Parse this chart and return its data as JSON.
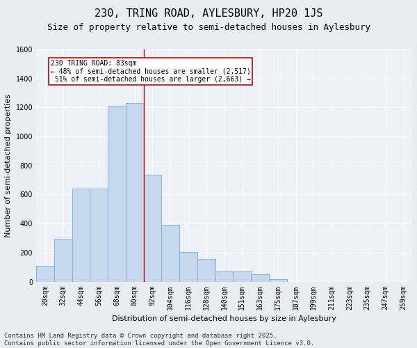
{
  "title": "230, TRING ROAD, AYLESBURY, HP20 1JS",
  "subtitle": "Size of property relative to semi-detached houses in Aylesbury",
  "xlabel": "Distribution of semi-detached houses by size in Aylesbury",
  "ylabel": "Number of semi-detached properties",
  "categories": [
    "20sqm",
    "32sqm",
    "44sqm",
    "56sqm",
    "68sqm",
    "80sqm",
    "92sqm",
    "104sqm",
    "116sqm",
    "128sqm",
    "140sqm",
    "151sqm",
    "163sqm",
    "175sqm",
    "187sqm",
    "199sqm",
    "211sqm",
    "223sqm",
    "235sqm",
    "247sqm",
    "259sqm"
  ],
  "values": [
    110,
    295,
    640,
    640,
    1210,
    1230,
    735,
    390,
    205,
    155,
    70,
    70,
    50,
    15,
    0,
    0,
    0,
    0,
    0,
    0,
    0
  ],
  "bar_color": "#c5d8ed",
  "bar_edge_color": "#7aafd4",
  "vline_x": 5.5,
  "vline_color": "#cc0000",
  "annotation_text": "230 TRING ROAD: 83sqm\n← 48% of semi-detached houses are smaller (2,517)\n 51% of semi-detached houses are larger (2,663) →",
  "annotation_box_color": "#ffffff",
  "annotation_box_edge": "#cc0000",
  "ylim": [
    0,
    1600
  ],
  "yticks": [
    0,
    200,
    400,
    600,
    800,
    1000,
    1200,
    1400,
    1600
  ],
  "bg_color": "#e8edf4",
  "plot_bg_color": "#edf1f7",
  "footer": "Contains HM Land Registry data © Crown copyright and database right 2025.\nContains public sector information licensed under the Open Government Licence v3.0.",
  "title_fontsize": 11,
  "subtitle_fontsize": 9,
  "axis_label_fontsize": 8,
  "tick_fontsize": 7,
  "footer_fontsize": 6.5
}
